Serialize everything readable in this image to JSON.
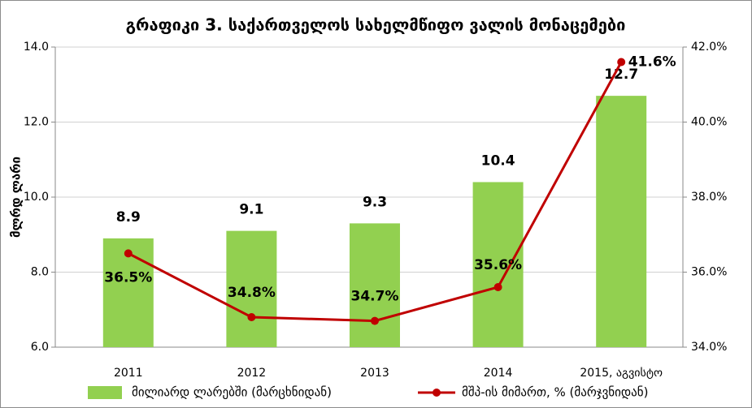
{
  "chart_data": {
    "type": "bar-line",
    "title": "გრაფიკი 3. საქართველოს სახელმწიფო ვალის მონაცემები",
    "y_label": "მლრდ ლარი",
    "categories": [
      "2011",
      "2012",
      "2013",
      "2014",
      "2015, აგვისტო"
    ],
    "series": [
      {
        "name": "მილიარდ ლარებში (მარცხნიდან)",
        "type": "bar",
        "color": "#92d050",
        "values": [
          8.9,
          9.1,
          9.3,
          10.4,
          12.7
        ]
      },
      {
        "name": "მშპ-ის მიმართ, % (მარჯვნიდან)",
        "type": "line",
        "axis": "y2",
        "color": "#c00000",
        "values": [
          36.5,
          34.8,
          34.7,
          35.6,
          41.6
        ],
        "value_labels": [
          "36.5%",
          "34.8%",
          "34.7%",
          "35.6%",
          "41.6%"
        ]
      }
    ],
    "ylim": [
      6,
      14
    ],
    "yticks": [
      {
        "value": 6,
        "label": "6.0"
      },
      {
        "value": 8,
        "label": "8.0"
      },
      {
        "value": 10,
        "label": "10.0"
      },
      {
        "value": 12,
        "label": "12.0"
      },
      {
        "value": 14,
        "label": "14.0"
      }
    ],
    "y2lim": [
      34,
      42
    ],
    "y2ticks": [
      {
        "value": 34,
        "label": "34.0%"
      },
      {
        "value": 36,
        "label": "36.0%"
      },
      {
        "value": 38,
        "label": "38.0%"
      },
      {
        "value": 40,
        "label": "40.0%"
      },
      {
        "value": 42,
        "label": "42.0%"
      }
    ],
    "grid": true,
    "legend": "bottom"
  }
}
